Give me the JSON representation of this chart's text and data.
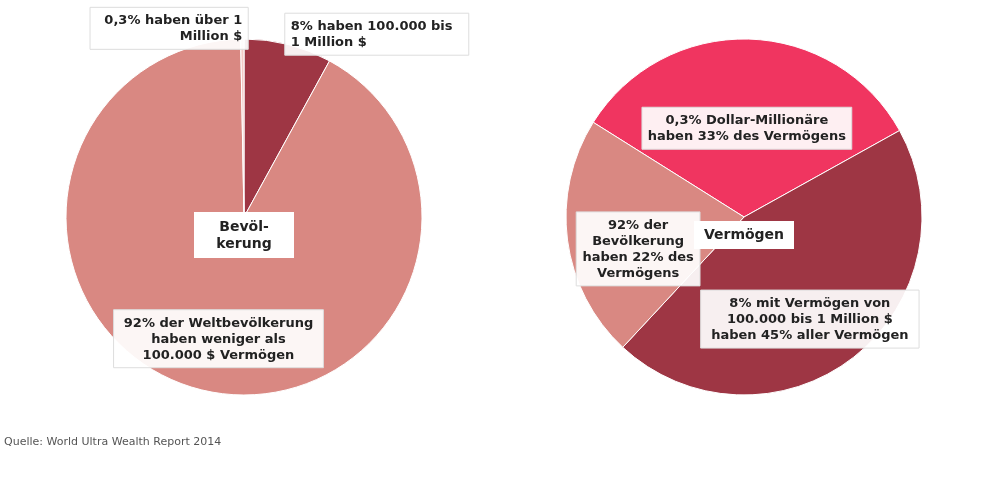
{
  "chart_data": [
    {
      "type": "pie",
      "title": "Bevöl-kerung",
      "categories": [
        "8% haben 100.000 bis 1 Million $",
        "92% der Weltbevölkerung haben weniger als 100.000 $ Vermögen",
        "0,3% haben über 1 Million $"
      ],
      "values": [
        8,
        92,
        0.3
      ],
      "colors": [
        "#9e3644",
        "#d98882",
        "#f3c9c6"
      ],
      "annotations": [
        "Quelle: World Ultra Wealth Report 2014"
      ]
    },
    {
      "type": "pie",
      "title": "Vermögen",
      "categories": [
        "0,3% Dollar-Millionäre haben 33% des Vermögens",
        "8% mit Vermögen von 100.000 bis 1 Million $ haben 45% aller Vermögen",
        "92% der Bevölkerung haben 22% des Vermögens"
      ],
      "values": [
        33,
        45,
        22
      ],
      "colors": [
        "#f03560",
        "#9e3644",
        "#d98882"
      ]
    }
  ]
}
